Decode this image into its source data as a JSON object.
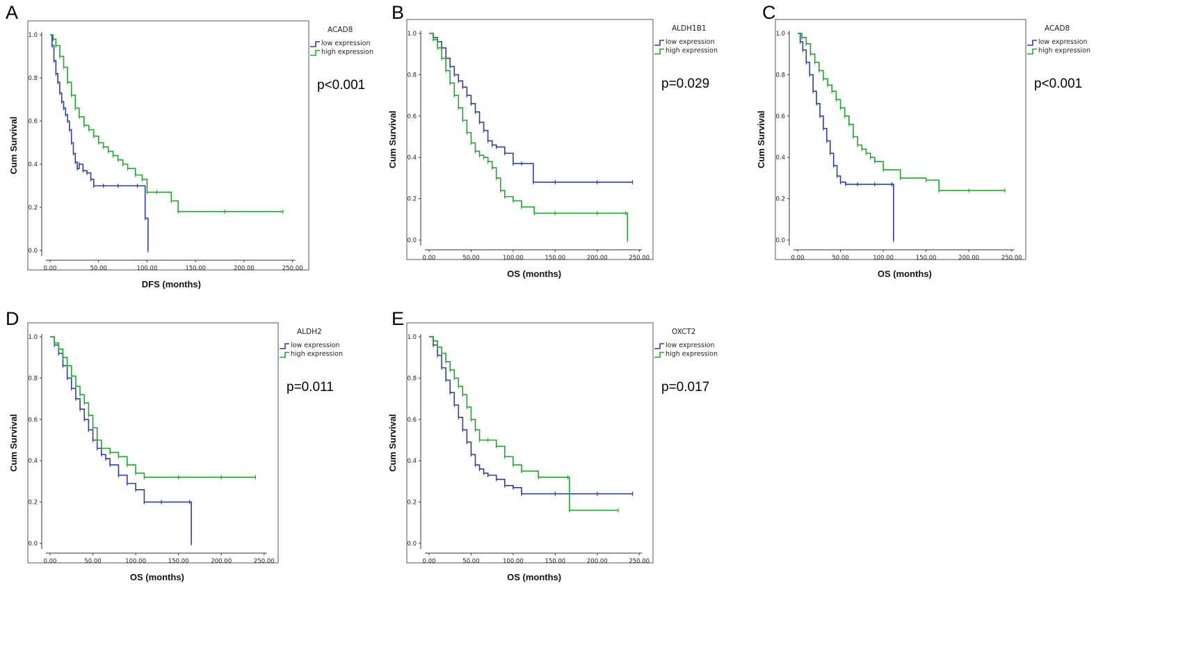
{
  "chart_data": [
    {
      "panel": "A",
      "type": "line",
      "title": "ACAD8",
      "p_value": "p<0.001",
      "xlabel": "DFS (months)",
      "ylabel": "Cum Survival",
      "xlim": [
        0,
        250
      ],
      "ylim": [
        0,
        1
      ],
      "xticks": [
        "0.00",
        "50.00",
        "100.00",
        "150.00",
        "200.00",
        "250.00"
      ],
      "yticks": [
        "0.0",
        "0.2",
        "0.4",
        "0.6",
        "0.8",
        "1.0"
      ],
      "legend_position": "right",
      "series": [
        {
          "name": "low expression",
          "color": "#2e3f9e",
          "x": [
            0,
            2,
            4,
            6,
            8,
            10,
            12,
            14,
            16,
            18,
            20,
            22,
            24,
            26,
            28,
            30,
            34,
            38,
            42,
            45,
            55,
            70,
            90,
            98,
            101
          ],
          "y": [
            1.0,
            0.95,
            0.88,
            0.82,
            0.78,
            0.73,
            0.69,
            0.66,
            0.63,
            0.6,
            0.56,
            0.5,
            0.45,
            0.41,
            0.38,
            0.4,
            0.37,
            0.36,
            0.33,
            0.3,
            0.3,
            0.3,
            0.3,
            0.15,
            0.0
          ]
        },
        {
          "name": "high expression",
          "color": "#1ea62e",
          "x": [
            0,
            3,
            6,
            10,
            14,
            18,
            22,
            26,
            30,
            35,
            40,
            45,
            50,
            55,
            60,
            65,
            70,
            75,
            80,
            88,
            95,
            100,
            110,
            125,
            132,
            180,
            240
          ],
          "y": [
            1.0,
            0.98,
            0.95,
            0.9,
            0.85,
            0.78,
            0.72,
            0.66,
            0.62,
            0.58,
            0.56,
            0.53,
            0.5,
            0.48,
            0.46,
            0.44,
            0.42,
            0.4,
            0.38,
            0.35,
            0.33,
            0.27,
            0.27,
            0.23,
            0.18,
            0.18,
            0.18
          ]
        }
      ]
    },
    {
      "panel": "B",
      "type": "line",
      "title": "ALDH1B1",
      "p_value": "p=0.029",
      "xlabel": "OS (months)",
      "ylabel": "Cum Survival",
      "xlim": [
        0,
        250
      ],
      "ylim": [
        0,
        1
      ],
      "xticks": [
        "0.00",
        "50.00",
        "100.00",
        "150.00",
        "200.00",
        "250.00"
      ],
      "yticks": [
        "0.0",
        "0.2",
        "0.4",
        "0.6",
        "0.8",
        "1.0"
      ],
      "legend_position": "right",
      "series": [
        {
          "name": "low expression",
          "color": "#2e3f9e",
          "x": [
            0,
            5,
            10,
            15,
            20,
            25,
            30,
            35,
            40,
            45,
            50,
            55,
            60,
            65,
            70,
            75,
            80,
            90,
            100,
            110,
            124,
            150,
            200,
            242
          ],
          "y": [
            1.0,
            0.98,
            0.96,
            0.93,
            0.88,
            0.84,
            0.8,
            0.77,
            0.74,
            0.7,
            0.66,
            0.62,
            0.57,
            0.53,
            0.48,
            0.46,
            0.45,
            0.42,
            0.37,
            0.37,
            0.28,
            0.28,
            0.28,
            0.28
          ]
        },
        {
          "name": "high expression",
          "color": "#1ea62e",
          "x": [
            0,
            5,
            10,
            15,
            20,
            25,
            30,
            35,
            40,
            45,
            50,
            55,
            60,
            65,
            70,
            75,
            80,
            85,
            90,
            100,
            110,
            125,
            150,
            200,
            234,
            236
          ],
          "y": [
            1.0,
            0.97,
            0.93,
            0.88,
            0.82,
            0.76,
            0.7,
            0.64,
            0.58,
            0.52,
            0.47,
            0.43,
            0.41,
            0.4,
            0.38,
            0.35,
            0.3,
            0.24,
            0.21,
            0.19,
            0.16,
            0.13,
            0.13,
            0.13,
            0.13,
            0.0
          ]
        }
      ]
    },
    {
      "panel": "C",
      "type": "line",
      "title": "ACAD8",
      "p_value": "p<0.001",
      "xlabel": "OS (months)",
      "ylabel": "Cum Survival",
      "xlim": [
        0,
        250
      ],
      "ylim": [
        0,
        1
      ],
      "xticks": [
        "0.00",
        "50.00",
        "100.00",
        "150.00",
        "200.00",
        "250.00"
      ],
      "yticks": [
        "0.0",
        "0.2",
        "0.4",
        "0.6",
        "0.8",
        "1.0"
      ],
      "legend_position": "right",
      "series": [
        {
          "name": "low expression",
          "color": "#2e3f9e",
          "x": [
            0,
            3,
            6,
            10,
            14,
            18,
            22,
            26,
            30,
            34,
            38,
            42,
            46,
            50,
            56,
            70,
            90,
            110,
            112
          ],
          "y": [
            1.0,
            0.96,
            0.92,
            0.86,
            0.8,
            0.72,
            0.66,
            0.6,
            0.54,
            0.48,
            0.42,
            0.36,
            0.31,
            0.28,
            0.27,
            0.27,
            0.27,
            0.27,
            0.0
          ]
        },
        {
          "name": "high expression",
          "color": "#1ea62e",
          "x": [
            0,
            5,
            10,
            15,
            20,
            25,
            30,
            35,
            40,
            45,
            50,
            55,
            60,
            65,
            70,
            75,
            80,
            85,
            90,
            100,
            120,
            150,
            165,
            200,
            242
          ],
          "y": [
            1.0,
            0.98,
            0.95,
            0.9,
            0.86,
            0.82,
            0.78,
            0.75,
            0.72,
            0.68,
            0.64,
            0.6,
            0.56,
            0.5,
            0.46,
            0.44,
            0.42,
            0.4,
            0.38,
            0.34,
            0.3,
            0.29,
            0.24,
            0.24,
            0.24
          ]
        }
      ]
    },
    {
      "panel": "D",
      "type": "line",
      "title": "ALDH2",
      "p_value": "p=0.011",
      "xlabel": "OS (months)",
      "ylabel": "Cum Survival",
      "xlim": [
        0,
        250
      ],
      "ylim": [
        0,
        1
      ],
      "xticks": [
        "0.00",
        "50.00",
        "100.00",
        "150.00",
        "200.00",
        "250.00"
      ],
      "yticks": [
        "0.0",
        "0.2",
        "0.4",
        "0.6",
        "0.8",
        "1.0"
      ],
      "legend_position": "right",
      "series": [
        {
          "name": "low expression",
          "color": "#2e3f9e",
          "x": [
            0,
            5,
            10,
            15,
            20,
            25,
            30,
            35,
            40,
            45,
            50,
            55,
            60,
            65,
            70,
            80,
            90,
            100,
            110,
            130,
            163,
            165
          ],
          "y": [
            1.0,
            0.96,
            0.92,
            0.86,
            0.8,
            0.75,
            0.7,
            0.65,
            0.6,
            0.55,
            0.5,
            0.46,
            0.43,
            0.41,
            0.38,
            0.33,
            0.29,
            0.26,
            0.2,
            0.2,
            0.2,
            0.0
          ]
        },
        {
          "name": "high expression",
          "color": "#1ea62e",
          "x": [
            0,
            5,
            10,
            15,
            20,
            25,
            30,
            35,
            40,
            45,
            50,
            55,
            60,
            70,
            80,
            90,
            100,
            110,
            150,
            200,
            240
          ],
          "y": [
            1.0,
            0.97,
            0.94,
            0.9,
            0.86,
            0.81,
            0.76,
            0.72,
            0.68,
            0.62,
            0.56,
            0.5,
            0.46,
            0.44,
            0.42,
            0.38,
            0.34,
            0.32,
            0.32,
            0.32,
            0.32
          ]
        }
      ]
    },
    {
      "panel": "E",
      "type": "line",
      "title": "OXCT2",
      "p_value": "p=0.017",
      "xlabel": "OS (months)",
      "ylabel": "Cum Survival",
      "xlim": [
        0,
        250
      ],
      "ylim": [
        0,
        1
      ],
      "xticks": [
        "0.00",
        "50.00",
        "100.00",
        "150.00",
        "200.00",
        "250.00"
      ],
      "yticks": [
        "0.0",
        "0.2",
        "0.4",
        "0.6",
        "0.8",
        "1.0"
      ],
      "legend_position": "right",
      "series": [
        {
          "name": "low expression",
          "color": "#2e3f9e",
          "x": [
            0,
            5,
            10,
            15,
            20,
            25,
            30,
            35,
            40,
            45,
            50,
            55,
            60,
            65,
            70,
            80,
            90,
            100,
            110,
            150,
            200,
            242
          ],
          "y": [
            1.0,
            0.96,
            0.91,
            0.85,
            0.79,
            0.73,
            0.67,
            0.61,
            0.55,
            0.49,
            0.43,
            0.38,
            0.36,
            0.34,
            0.33,
            0.31,
            0.28,
            0.27,
            0.24,
            0.24,
            0.24,
            0.24
          ]
        },
        {
          "name": "high expression",
          "color": "#1ea62e",
          "x": [
            0,
            5,
            10,
            15,
            20,
            25,
            30,
            35,
            40,
            45,
            50,
            55,
            60,
            70,
            80,
            90,
            100,
            110,
            130,
            165,
            167,
            225
          ],
          "y": [
            1.0,
            0.98,
            0.95,
            0.92,
            0.88,
            0.84,
            0.8,
            0.76,
            0.72,
            0.66,
            0.6,
            0.55,
            0.5,
            0.5,
            0.47,
            0.42,
            0.38,
            0.35,
            0.32,
            0.32,
            0.16,
            0.16
          ]
        }
      ]
    }
  ],
  "legend": {
    "low": "low expression",
    "high": "high expression"
  }
}
